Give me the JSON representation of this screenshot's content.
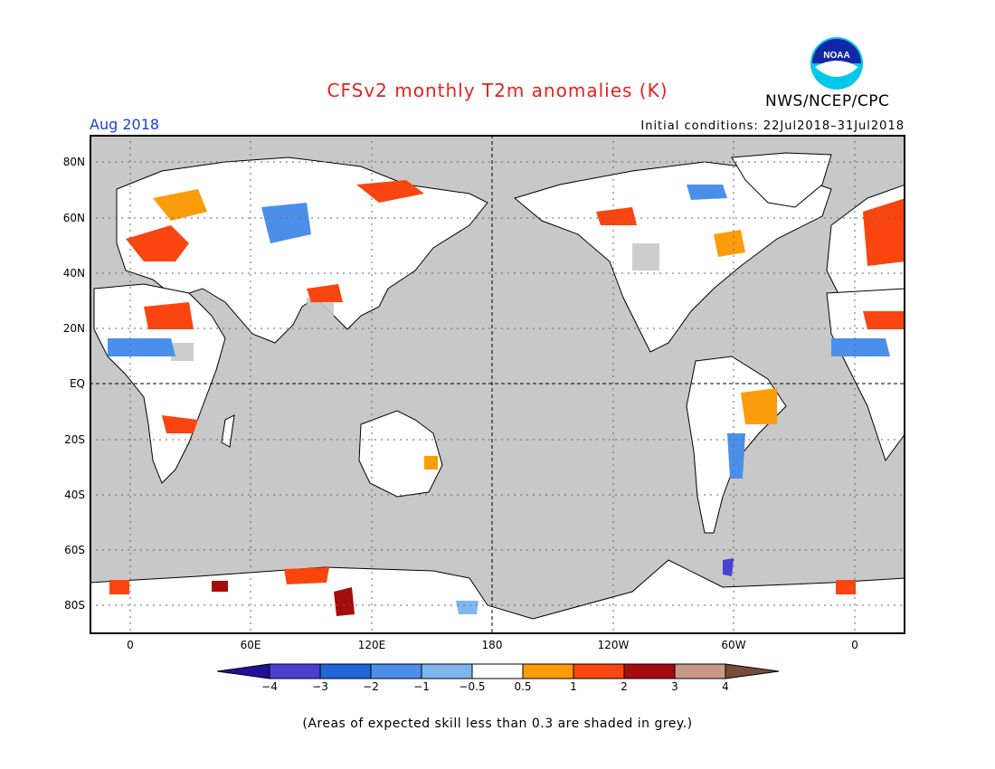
{
  "header": {
    "title": "CFSv2 monthly T2m anomalies (K)",
    "title_color": "#e8221a",
    "month": "Aug 2018",
    "month_color": "#1a3fd6",
    "initial_conditions": "Initial conditions: 22Jul2018–31Jul2018",
    "agency": "NWS/NCEP/CPC",
    "logo_text": "NOAA"
  },
  "map": {
    "latitude_labels": [
      "80N",
      "60N",
      "40N",
      "20N",
      "EQ",
      "20S",
      "40S",
      "60S",
      "80S"
    ],
    "longitude_labels": [
      "0",
      "60E",
      "120E",
      "180",
      "120W",
      "60W",
      "0"
    ],
    "background_color": "#c8c8c8",
    "reference_lines": [
      "equator",
      "180 meridian"
    ]
  },
  "colorbar": {
    "tick_labels": [
      "−4",
      "−3",
      "−2",
      "−1",
      "−0.5",
      "0.5",
      "1",
      "2",
      "3",
      "4"
    ],
    "colors": [
      "#20109a",
      "#4b3fcf",
      "#2166d8",
      "#4a90ea",
      "#7fb6f0",
      "#ffffff",
      "#fb9c0a",
      "#fa4510",
      "#a50c0c",
      "#c8988a",
      "#7a4a3a"
    ]
  },
  "footnote": "(Areas of expected skill less than 0.3 are shaded in grey.)"
}
